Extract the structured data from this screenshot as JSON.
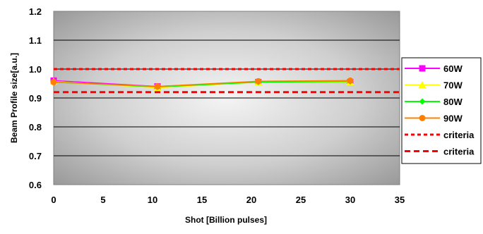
{
  "chart_data": {
    "type": "line",
    "title": "",
    "xlabel": "Shot [Billion pulses]",
    "ylabel": "Beam Profile size[a.u.]",
    "xlim": [
      0,
      35
    ],
    "ylim": [
      0.6,
      1.2
    ],
    "x_ticks": [
      "0",
      "5",
      "10",
      "15",
      "20",
      "25",
      "30",
      "35"
    ],
    "y_ticks": [
      "0.6",
      "0.7",
      "0.8",
      "0.9",
      "1.0",
      "1.1",
      "1.2"
    ],
    "grid": true,
    "background": "gradient gray",
    "legend_position": "right",
    "series": [
      {
        "name": "60W",
        "color": "#ff00ff",
        "marker": "square",
        "x": [
          0,
          10.5,
          20.7,
          30
        ],
        "y": [
          0.96,
          0.94,
          0.955,
          0.955
        ]
      },
      {
        "name": "70W",
        "color": "#ffff00",
        "marker": "triangle",
        "x": [
          0,
          10.5,
          20.7,
          30
        ],
        "y": [
          0.957,
          0.935,
          0.955,
          0.955
        ]
      },
      {
        "name": "80W",
        "color": "#00ff00",
        "marker": "diamond",
        "x": [
          0,
          10.5,
          20.7,
          30
        ],
        "y": [
          0.955,
          0.938,
          0.955,
          0.957
        ]
      },
      {
        "name": "90W",
        "color": "#ff8000",
        "marker": "circle",
        "x": [
          0,
          10.5,
          20.7,
          30
        ],
        "y": [
          0.955,
          0.94,
          0.958,
          0.96
        ]
      }
    ],
    "reference_lines": [
      {
        "name": "criteria",
        "y": 1.0,
        "color": "#ff0000",
        "style": "dotted"
      },
      {
        "name": "criteria",
        "y": 0.92,
        "color": "#ff0000",
        "style": "dashed"
      }
    ]
  }
}
